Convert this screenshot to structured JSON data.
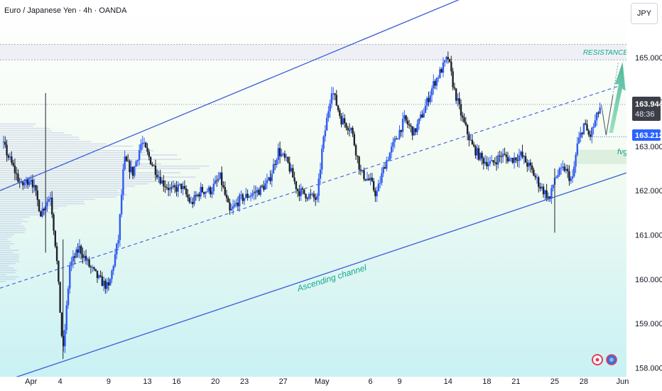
{
  "header": {
    "title": "Euro / Japanese Yen · 4h · OANDA"
  },
  "currency": "JPY",
  "price_badges": {
    "last_price": "163.944",
    "countdown": "48:36",
    "level": "163.212"
  },
  "annotations": {
    "resistance": "RESISTANCE",
    "fvg": "fvg",
    "channel": "Ascending channel"
  },
  "colors": {
    "bull": "#2f5bf0",
    "bear": "#1e222d",
    "channel": "#3b5bdb",
    "annotation_text": "#14a88a",
    "arrow": "#5ec4a0",
    "level_badge": "#2962ff",
    "price_badge": "#3c3f48"
  },
  "chart_data": {
    "type": "candlestick",
    "title": "Euro / Japanese Yen · 4h · OANDA",
    "ylim": [
      157.8,
      166.3
    ],
    "y_ticks": [
      "165.000",
      "164.000",
      "163.000",
      "162.000",
      "161.000",
      "160.000",
      "159.000",
      "158.000"
    ],
    "y_tick_values": [
      165,
      164,
      163,
      162,
      161,
      160,
      159,
      158
    ],
    "x_ticks": [
      {
        "label": "Apr",
        "day": 1
      },
      {
        "label": "4",
        "day": 4
      },
      {
        "label": "9",
        "day": 9
      },
      {
        "label": "13",
        "day": 13
      },
      {
        "label": "16",
        "day": 16
      },
      {
        "label": "20",
        "day": 20
      },
      {
        "label": "23",
        "day": 23
      },
      {
        "label": "27",
        "day": 27
      },
      {
        "label": "May",
        "day": 31
      },
      {
        "label": "6",
        "day": 36
      },
      {
        "label": "9",
        "day": 39
      },
      {
        "label": "14",
        "day": 44
      },
      {
        "label": "18",
        "day": 48
      },
      {
        "label": "21",
        "day": 51
      },
      {
        "label": "25",
        "day": 55
      },
      {
        "label": "28",
        "day": 58
      },
      {
        "label": "Jun",
        "day": 62
      }
    ],
    "xlim_days": [
      -2.2,
      62.4
    ],
    "close_path": [
      [
        -2.0,
        163.1
      ],
      [
        -1.0,
        162.6
      ],
      [
        0.0,
        162.1
      ],
      [
        1.0,
        162.3
      ],
      [
        2.0,
        161.5
      ],
      [
        3.0,
        161.9
      ],
      [
        3.6,
        160.6
      ],
      [
        4.3,
        158.3
      ],
      [
        5.0,
        160.3
      ],
      [
        6.0,
        160.7
      ],
      [
        7.0,
        160.3
      ],
      [
        8.0,
        160.0
      ],
      [
        9.0,
        159.8
      ],
      [
        10.0,
        160.9
      ],
      [
        10.6,
        162.7
      ],
      [
        11.5,
        162.4
      ],
      [
        12.4,
        163.1
      ],
      [
        13.5,
        162.6
      ],
      [
        14.5,
        162.2
      ],
      [
        15.5,
        162.0
      ],
      [
        16.5,
        162.1
      ],
      [
        17.5,
        161.7
      ],
      [
        18.5,
        162.0
      ],
      [
        19.5,
        162.0
      ],
      [
        20.5,
        162.3
      ],
      [
        21.5,
        161.5
      ],
      [
        22.5,
        161.8
      ],
      [
        23.5,
        161.9
      ],
      [
        24.5,
        162.0
      ],
      [
        25.5,
        162.2
      ],
      [
        26.5,
        162.9
      ],
      [
        27.5,
        162.6
      ],
      [
        28.5,
        162.0
      ],
      [
        29.5,
        161.9
      ],
      [
        30.5,
        161.8
      ],
      [
        31.0,
        162.9
      ],
      [
        32.0,
        164.3
      ],
      [
        33.0,
        163.6
      ],
      [
        34.0,
        163.4
      ],
      [
        35.0,
        162.4
      ],
      [
        36.0,
        162.2
      ],
      [
        36.6,
        161.9
      ],
      [
        37.5,
        162.6
      ],
      [
        38.5,
        163.1
      ],
      [
        39.5,
        163.6
      ],
      [
        40.5,
        163.3
      ],
      [
        41.5,
        163.8
      ],
      [
        42.5,
        164.4
      ],
      [
        43.5,
        164.8
      ],
      [
        44.0,
        165.0
      ],
      [
        44.6,
        164.3
      ],
      [
        45.5,
        163.6
      ],
      [
        46.5,
        163.0
      ],
      [
        47.5,
        162.7
      ],
      [
        48.5,
        162.6
      ],
      [
        49.5,
        162.8
      ],
      [
        50.5,
        162.7
      ],
      [
        51.5,
        162.8
      ],
      [
        52.5,
        162.5
      ],
      [
        53.5,
        162.1
      ],
      [
        54.5,
        161.8
      ],
      [
        55.0,
        162.3
      ],
      [
        56.0,
        162.5
      ],
      [
        56.8,
        162.2
      ],
      [
        57.3,
        163.0
      ],
      [
        58.0,
        163.5
      ],
      [
        58.6,
        163.2
      ],
      [
        59.4,
        163.7
      ],
      [
        59.8,
        163.95
      ]
    ],
    "channel": {
      "upper": [
        [
          -2.2,
          162.0
        ],
        [
          50.0,
          166.75
        ]
      ],
      "mid": [
        [
          -2.2,
          159.8
        ],
        [
          62.2,
          164.4
        ]
      ],
      "lower": [
        [
          -1.8,
          157.7
        ],
        [
          62.4,
          162.4
        ]
      ]
    },
    "resistance_band": [
      164.95,
      165.3
    ],
    "fvg_band": [
      162.6,
      162.92
    ],
    "last_price": 163.944,
    "level_line": 163.212
  }
}
